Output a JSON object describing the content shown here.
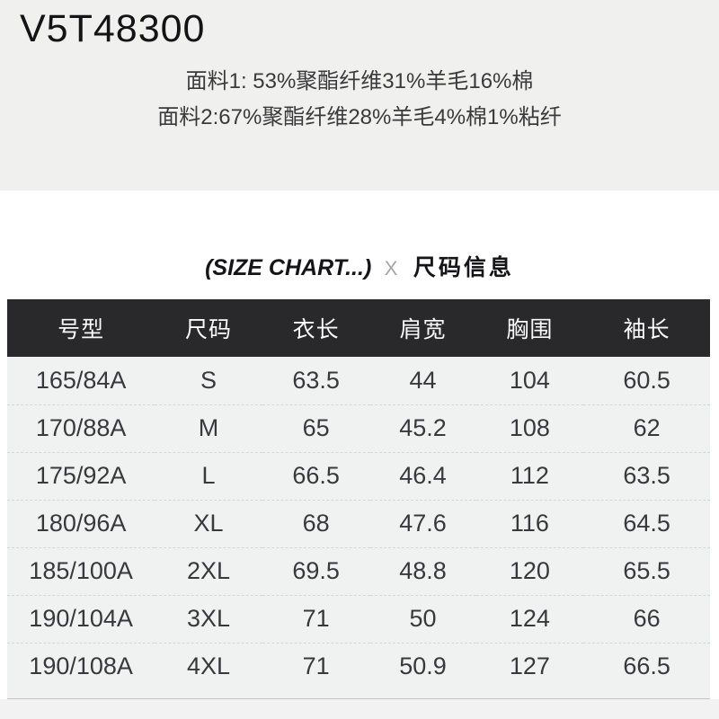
{
  "product": {
    "code": "V5T48300",
    "fabric_line1": "面料1: 53%聚酯纤维31%羊毛16%棉",
    "fabric_line2": "面料2:67%聚酯纤维28%羊毛4%棉1%粘纤"
  },
  "size_chart": {
    "title_en": "(SIZE CHART...)",
    "title_separator": "X",
    "title_cn": "尺码信息",
    "columns": [
      "号型",
      "尺码",
      "衣长",
      "肩宽",
      "胸围",
      "袖长"
    ],
    "rows": [
      [
        "165/84A",
        "S",
        "63.5",
        "44",
        "104",
        "60.5"
      ],
      [
        "170/88A",
        "M",
        "65",
        "45.2",
        "108",
        "62"
      ],
      [
        "175/92A",
        "L",
        "66.5",
        "46.4",
        "112",
        "63.5"
      ],
      [
        "180/96A",
        "XL",
        "68",
        "47.6",
        "116",
        "64.5"
      ],
      [
        "185/100A",
        "2XL",
        "69.5",
        "48.8",
        "120",
        "65.5"
      ],
      [
        "190/104A",
        "3XL",
        "71",
        "50",
        "124",
        "66"
      ],
      [
        "190/108A",
        "4XL",
        "71",
        "50.9",
        "127",
        "66.5"
      ]
    ]
  },
  "colors": {
    "top_background": "#f0f0ef",
    "table_header_background": "#29292b",
    "table_body_background": "#f0f1f1",
    "header_text": "#fafafa",
    "body_text": "#39393b",
    "separator_dash": "#d7d7d8",
    "bottom_rule": "#c3c3c4"
  }
}
